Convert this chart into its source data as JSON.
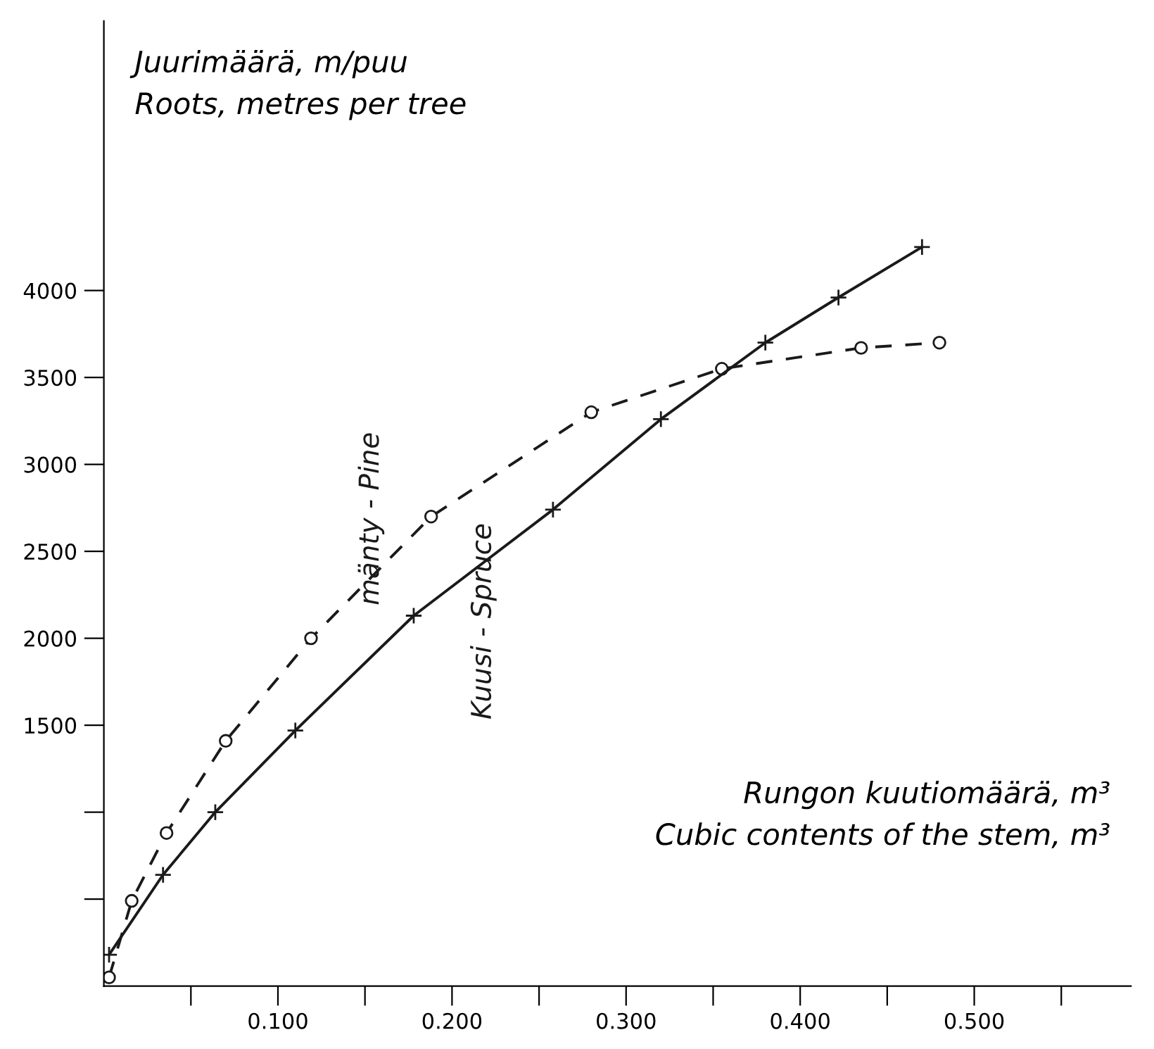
{
  "chart_data": {
    "type": "line",
    "ylabel": "Juurimäärä, m/puu\nRoots, metres per tree",
    "xlabel": "Rungon kuutiomäärä, m³\nCubic contents of the stem, m³",
    "series": [
      {
        "name": "mänty - Pine",
        "color": "#1a1a1a",
        "marker": "circle",
        "line_style": "dashed",
        "x": [
          0.003,
          0.016,
          0.036,
          0.07,
          0.119,
          0.188,
          0.28,
          0.355,
          0.435,
          0.48
        ],
        "values": [
          50,
          490,
          880,
          1410,
          2000,
          2700,
          3300,
          3550,
          3670,
          3700
        ]
      },
      {
        "name": "Kuusi - Spruce",
        "color": "#1a1a1a",
        "marker": "cross",
        "line_style": "solid",
        "x": [
          0.003,
          0.034,
          0.064,
          0.11,
          0.178,
          0.258,
          0.32,
          0.38,
          0.422,
          0.47
        ],
        "values": [
          180,
          640,
          1000,
          1470,
          2130,
          2740,
          3260,
          3700,
          3960,
          4250
        ]
      }
    ],
    "xlim": [
      0,
      0.59
    ],
    "ylim": [
      0,
      5550
    ],
    "xticks": [
      {
        "value": 0.05,
        "label": null
      },
      {
        "value": 0.1,
        "label": "0.100"
      },
      {
        "value": 0.15,
        "label": null
      },
      {
        "value": 0.2,
        "label": "0.200"
      },
      {
        "value": 0.25,
        "label": null
      },
      {
        "value": 0.3,
        "label": "0.300"
      },
      {
        "value": 0.35,
        "label": null
      },
      {
        "value": 0.4,
        "label": "0.400"
      },
      {
        "value": 0.45,
        "label": null
      },
      {
        "value": 0.5,
        "label": "0.500"
      },
      {
        "value": 0.55,
        "label": null
      }
    ],
    "yticks": [
      {
        "value": 500,
        "label": null
      },
      {
        "value": 1000,
        "label": null
      },
      1500,
      2000,
      2500,
      3000,
      3500,
      4000
    ],
    "grid": false,
    "legend": false
  }
}
